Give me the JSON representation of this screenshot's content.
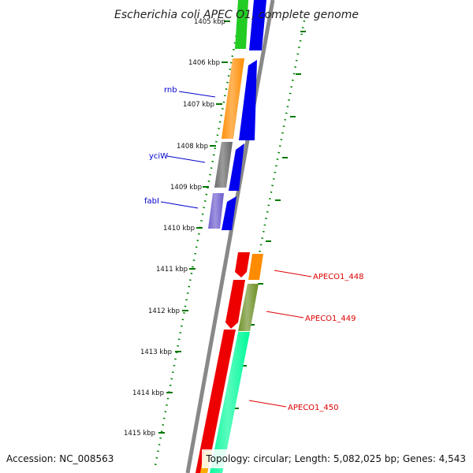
{
  "title": "Escherichia coli APEC O1, complete genome",
  "footer": {
    "accession": "Accession: NC_008563",
    "topology": "Topology: circular; Length: 5,082,025 bp; Genes: 4,543"
  },
  "ticks": [
    "1405 kbp",
    "1406 kbp",
    "1407 kbp",
    "1408 kbp",
    "1409 kbp",
    "1410 kbp",
    "1411 kbp",
    "1412 kbp",
    "1413 kbp",
    "1414 kbp",
    "1415 kbp"
  ],
  "gene_labels": {
    "rnb": "rnb",
    "yciW": "yciW",
    "fabI": "fabI",
    "apeco1_448": "APECO1_448",
    "apeco1_449": "APECO1_449",
    "apeco1_450": "APECO1_450"
  },
  "colors": {
    "blue": "#0000ee",
    "orange": "#ff8c00",
    "gray": "#666666",
    "slateblue": "#6a5acd",
    "red": "#ee0000",
    "olive": "#6b8e23",
    "springgreen": "#00fa9a",
    "green": "#22cc22",
    "backbone": "#888888",
    "dotted": "#008000",
    "label_blue": "#0000cc",
    "label_red": "#dd0000"
  }
}
